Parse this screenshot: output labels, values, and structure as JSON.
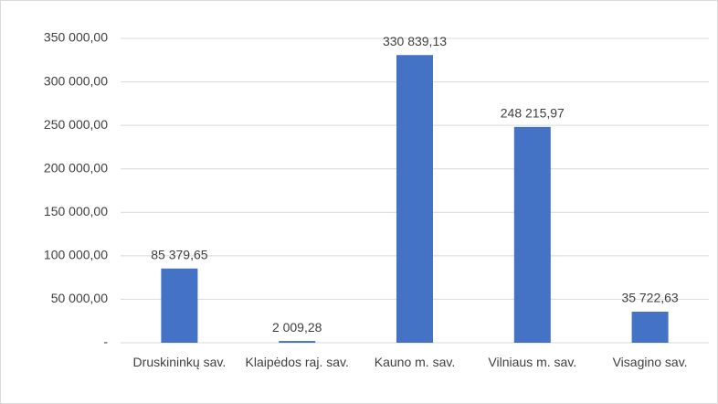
{
  "chart_data": {
    "type": "bar",
    "categories": [
      "Druskininkų sav.",
      "Klaipėdos raj. sav.",
      "Kauno m. sav.",
      "Vilniaus m. sav.",
      "Visagino sav."
    ],
    "values": [
      85379.65,
      2009.28,
      330839.13,
      248215.97,
      35722.63
    ],
    "value_labels": [
      "85 379,65",
      "2 009,28",
      "330 839,13",
      "248 215,97",
      "35 722,63"
    ],
    "color": "#4472c4",
    "ylim": [
      0,
      350000
    ],
    "yticks": [
      {
        "value": 0,
        "label": "-"
      },
      {
        "value": 50000,
        "label": "50 000,00"
      },
      {
        "value": 100000,
        "label": "100 000,00"
      },
      {
        "value": 150000,
        "label": "150 000,00"
      },
      {
        "value": 200000,
        "label": "200 000,00"
      },
      {
        "value": 250000,
        "label": "250 000,00"
      },
      {
        "value": 300000,
        "label": "300 000,00"
      },
      {
        "value": 350000,
        "label": "350 000,00"
      }
    ],
    "grid": true
  }
}
